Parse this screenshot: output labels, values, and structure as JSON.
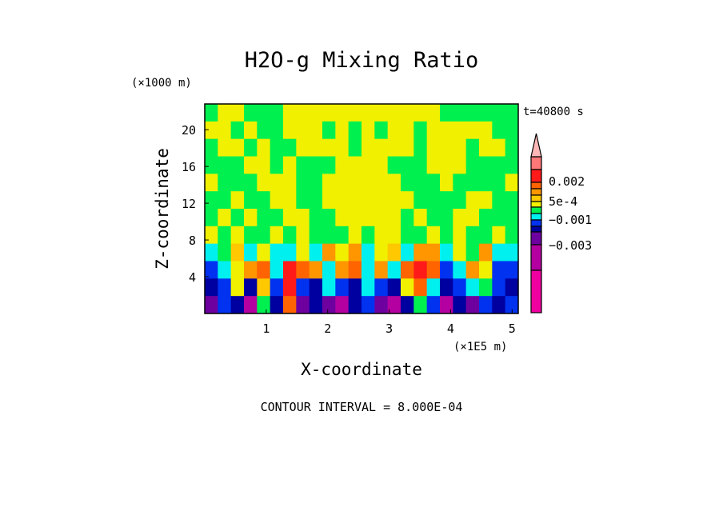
{
  "chart_data": {
    "type": "heatmap",
    "subtype": "filled-contour",
    "title": "H2O-g Mixing Ratio",
    "xlabel": "X-coordinate",
    "ylabel": "Z-coordinate",
    "x_units": "(×1E5 m)",
    "y_units": "(×1000 m)",
    "time_label": "t=40800 s",
    "footer": "CONTOUR INTERVAL = 8.000E-04",
    "xlim": [
      0,
      5.1
    ],
    "ylim": [
      0,
      22.8
    ],
    "xticks": [
      1,
      2,
      3,
      4,
      5
    ],
    "xtick_labels": [
      "1",
      "2",
      "3",
      "4",
      "5"
    ],
    "yticks": [
      4,
      8,
      12,
      16,
      20
    ],
    "ytick_labels": [
      "4",
      "8",
      "12",
      "16",
      "20"
    ],
    "colorbar": {
      "colors_bottom_to_top": [
        "#f000a0",
        "#b400a0",
        "#6e00a0",
        "#0000a0",
        "#0032f0",
        "#00f0f0",
        "#00f050",
        "#f0f000",
        "#ffc800",
        "#ff9600",
        "#ff6400",
        "#ff1a1a",
        "#ff7878"
      ],
      "overflow_color": "#ffb6b6",
      "labels": [
        {
          "text": "0.002",
          "value": 0.002
        },
        {
          "text": "5e-4",
          "value": 0.0005
        },
        {
          "text": "−0.001",
          "value": -0.001
        },
        {
          "text": "−0.003",
          "value": -0.003
        }
      ]
    },
    "approx_field_level_index_rows_top_to_bottom": [
      [
        6,
        7,
        7,
        6,
        6,
        6,
        7,
        7,
        7,
        7,
        7,
        7,
        7,
        7,
        7,
        7,
        7,
        7,
        6,
        6,
        6,
        6,
        6,
        6
      ],
      [
        7,
        7,
        6,
        7,
        6,
        6,
        7,
        7,
        7,
        6,
        7,
        6,
        7,
        6,
        7,
        7,
        6,
        7,
        7,
        7,
        7,
        7,
        6,
        6
      ],
      [
        6,
        7,
        7,
        6,
        7,
        6,
        6,
        7,
        7,
        7,
        7,
        6,
        7,
        7,
        7,
        7,
        6,
        7,
        7,
        7,
        6,
        7,
        7,
        6
      ],
      [
        6,
        6,
        6,
        7,
        7,
        6,
        7,
        6,
        6,
        6,
        7,
        7,
        7,
        7,
        6,
        6,
        6,
        7,
        7,
        7,
        6,
        6,
        6,
        6
      ],
      [
        7,
        6,
        6,
        6,
        7,
        7,
        7,
        6,
        6,
        7,
        7,
        7,
        7,
        7,
        7,
        6,
        6,
        6,
        7,
        6,
        6,
        6,
        6,
        7
      ],
      [
        6,
        6,
        7,
        6,
        6,
        7,
        7,
        6,
        6,
        7,
        7,
        7,
        7,
        7,
        7,
        7,
        6,
        6,
        6,
        6,
        7,
        7,
        6,
        6
      ],
      [
        6,
        7,
        6,
        7,
        6,
        6,
        7,
        7,
        6,
        6,
        7,
        7,
        7,
        7,
        7,
        6,
        7,
        6,
        6,
        7,
        7,
        6,
        6,
        6
      ],
      [
        7,
        6,
        7,
        6,
        6,
        7,
        6,
        7,
        6,
        6,
        6,
        7,
        6,
        7,
        7,
        6,
        6,
        7,
        6,
        7,
        6,
        6,
        7,
        6
      ],
      [
        5,
        6,
        8,
        5,
        7,
        5,
        5,
        7,
        5,
        9,
        7,
        9,
        5,
        7,
        8,
        5,
        9,
        9,
        5,
        7,
        6,
        9,
        5,
        5
      ],
      [
        4,
        5,
        7,
        9,
        10,
        5,
        11,
        10,
        9,
        5,
        9,
        10,
        5,
        9,
        5,
        10,
        11,
        10,
        4,
        5,
        9,
        7,
        4,
        4
      ],
      [
        3,
        4,
        7,
        3,
        8,
        4,
        11,
        4,
        3,
        5,
        4,
        3,
        5,
        4,
        3,
        7,
        10,
        5,
        3,
        4,
        5,
        6,
        4,
        3
      ],
      [
        2,
        4,
        3,
        1,
        6,
        3,
        10,
        2,
        3,
        2,
        1,
        3,
        4,
        2,
        1,
        3,
        6,
        4,
        1,
        3,
        2,
        4,
        3,
        4
      ]
    ]
  }
}
